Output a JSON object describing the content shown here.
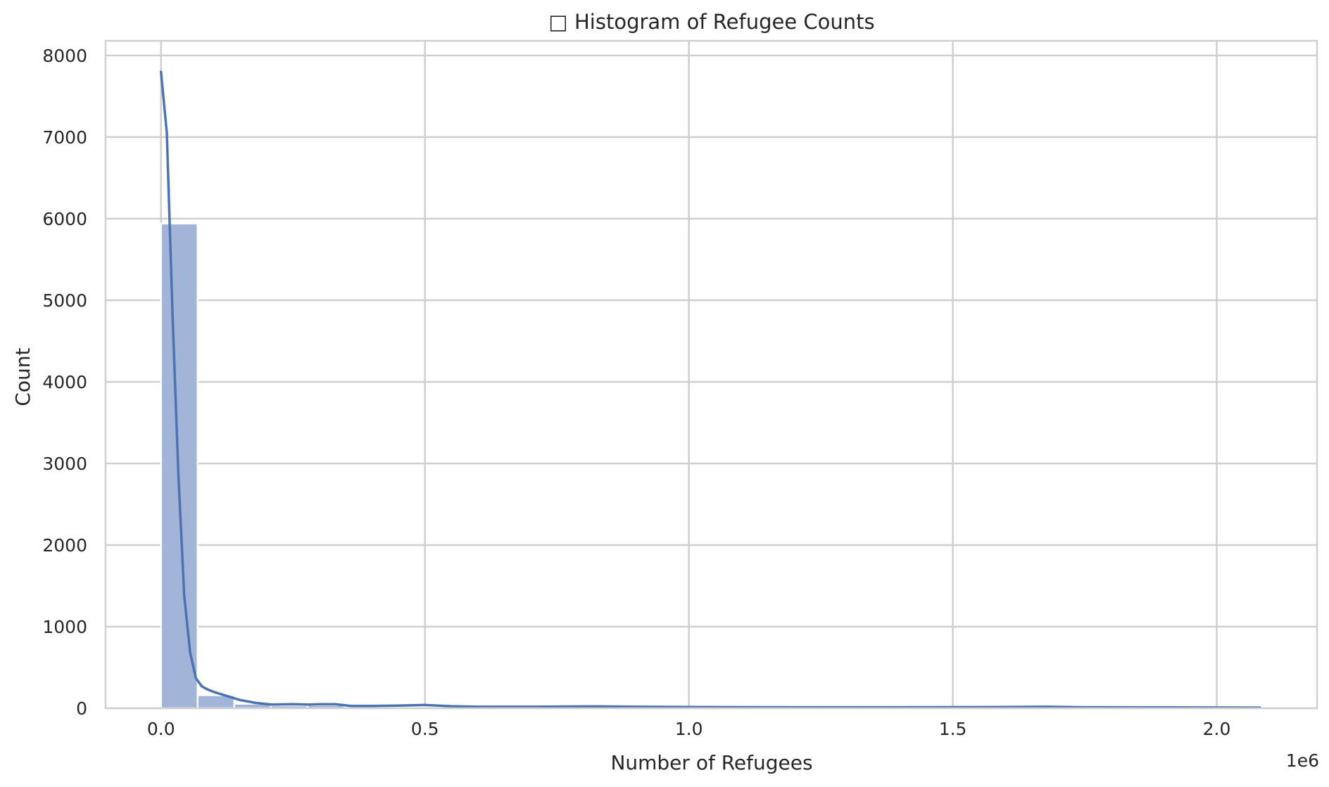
{
  "chart_data": {
    "type": "histogram",
    "title": "□ Histogram of Refugee Counts",
    "xlabel": "Number of Refugees",
    "ylabel": "Count",
    "x_offset_text": "1e6",
    "x_scale_factor": 1000000,
    "xlim": [
      -105000,
      2190000
    ],
    "ylim": [
      0,
      8180
    ],
    "x_ticks": [
      0,
      500000,
      1000000,
      1500000,
      2000000
    ],
    "x_tick_labels": [
      "0.0",
      "0.5",
      "1.0",
      "1.5",
      "2.0"
    ],
    "y_ticks": [
      0,
      1000,
      2000,
      3000,
      4000,
      5000,
      6000,
      7000,
      8000
    ],
    "y_tick_labels": [
      "0",
      "1000",
      "2000",
      "3000",
      "4000",
      "5000",
      "6000",
      "7000",
      "8000"
    ],
    "grid": true,
    "bar_color": "#a2b4d8",
    "kde_color": "#4c72b0",
    "grid_color": "#cfcfcf",
    "bins": [
      {
        "x0": 0,
        "x1": 69400,
        "count": 5940
      },
      {
        "x0": 69400,
        "x1": 138800,
        "count": 160
      },
      {
        "x0": 138800,
        "x1": 208200,
        "count": 55
      },
      {
        "x0": 208200,
        "x1": 277600,
        "count": 35
      },
      {
        "x0": 277600,
        "x1": 347000,
        "count": 38
      },
      {
        "x0": 347000,
        "x1": 416400,
        "count": 12
      },
      {
        "x0": 416400,
        "x1": 485800,
        "count": 18
      },
      {
        "x0": 485800,
        "x1": 555200,
        "count": 20
      },
      {
        "x0": 555200,
        "x1": 624600,
        "count": 8
      },
      {
        "x0": 624600,
        "x1": 694000,
        "count": 6
      },
      {
        "x0": 694000,
        "x1": 763400,
        "count": 5
      },
      {
        "x0": 763400,
        "x1": 832800,
        "count": 6
      },
      {
        "x0": 832800,
        "x1": 902200,
        "count": 4
      },
      {
        "x0": 902200,
        "x1": 971600,
        "count": 3
      },
      {
        "x0": 971600,
        "x1": 1041000,
        "count": 3
      },
      {
        "x0": 1041000,
        "x1": 1110400,
        "count": 2
      },
      {
        "x0": 1110400,
        "x1": 1179800,
        "count": 2
      },
      {
        "x0": 1179800,
        "x1": 1249200,
        "count": 2
      },
      {
        "x0": 1249200,
        "x1": 1318600,
        "count": 2
      },
      {
        "x0": 1318600,
        "x1": 1388000,
        "count": 2
      },
      {
        "x0": 1388000,
        "x1": 1457400,
        "count": 1
      },
      {
        "x0": 1457400,
        "x1": 1526800,
        "count": 2
      },
      {
        "x0": 1526800,
        "x1": 1596200,
        "count": 2
      },
      {
        "x0": 1596200,
        "x1": 1665600,
        "count": 3
      },
      {
        "x0": 1665600,
        "x1": 1735000,
        "count": 4
      },
      {
        "x0": 1735000,
        "x1": 1804400,
        "count": 2
      },
      {
        "x0": 1804400,
        "x1": 1873800,
        "count": 1
      },
      {
        "x0": 1873800,
        "x1": 1943200,
        "count": 1
      },
      {
        "x0": 1943200,
        "x1": 2012600,
        "count": 1
      },
      {
        "x0": 2012600,
        "x1": 2082000,
        "count": 1
      }
    ],
    "kde": {
      "x": [
        0,
        11000,
        22000,
        33000,
        44000,
        55000,
        66000,
        77000,
        88000,
        100000,
        120000,
        150000,
        180000,
        210000,
        250000,
        280000,
        300000,
        330000,
        360000,
        400000,
        450000,
        500000,
        550000,
        600000,
        700000,
        800000,
        830000,
        900000,
        1000000,
        1200000,
        1400000,
        1600000,
        1680000,
        1750000,
        1900000,
        2082000
      ],
      "y": [
        7800,
        7050,
        4800,
        2850,
        1380,
        690,
        370,
        270,
        230,
        200,
        160,
        100,
        65,
        45,
        50,
        45,
        48,
        50,
        28,
        28,
        33,
        40,
        25,
        18,
        18,
        22,
        22,
        18,
        15,
        12,
        12,
        15,
        18,
        12,
        10,
        8
      ]
    }
  }
}
